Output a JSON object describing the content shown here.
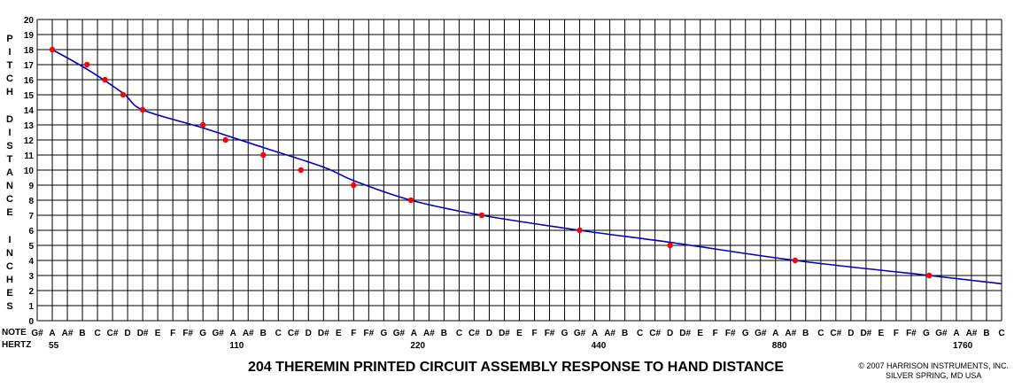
{
  "chart_data": {
    "type": "line",
    "title": "204 THEREMIN PRINTED CIRCUIT ASSEMBLY RESPONSE TO HAND DISTANCE",
    "ylabel_lines": [
      "P",
      "I",
      "T",
      "C",
      "H",
      "",
      "D",
      "I",
      "S",
      "T",
      "A",
      "N",
      "C",
      "E",
      "",
      "I",
      "N",
      "C",
      "H",
      "E",
      "S"
    ],
    "ylim": [
      0,
      20
    ],
    "y_ticks": [
      "0",
      "1",
      "2",
      "3",
      "4",
      "5",
      "6",
      "7",
      "8",
      "9",
      "10",
      "11",
      "12",
      "13",
      "14",
      "15",
      "16",
      "17",
      "18",
      "19",
      "20"
    ],
    "x_row_labels": {
      "note": "NOTE",
      "hertz": "HERTZ"
    },
    "notes": [
      "G#",
      "A",
      "A#",
      "B",
      "C",
      "C#",
      "D",
      "D#",
      "E",
      "F",
      "F#",
      "G",
      "G#",
      "A",
      "A#",
      "B",
      "C",
      "C#",
      "D",
      "D#",
      "E",
      "F",
      "F#",
      "G",
      "G#",
      "A",
      "A#",
      "B",
      "C",
      "C#",
      "D",
      "D#",
      "E",
      "F",
      "F#",
      "G",
      "G#",
      "A",
      "A#",
      "B",
      "C",
      "C#",
      "D",
      "D#",
      "E",
      "F",
      "F#",
      "G",
      "G#",
      "A",
      "A#",
      "B",
      "C",
      "C#",
      "D",
      "D#",
      "E",
      "F",
      "F#",
      "G",
      "G#",
      "A",
      "A#",
      "B",
      "C"
    ],
    "hertz_labels": [
      {
        "semitone": 1,
        "text": "55"
      },
      {
        "semitone": 13,
        "text": "110"
      },
      {
        "semitone": 25,
        "text": "220"
      },
      {
        "semitone": 37,
        "text": "440"
      },
      {
        "semitone": 49,
        "text": "880"
      },
      {
        "semitone": 61,
        "text": "1760"
      }
    ],
    "grid": true,
    "series": [
      {
        "kind": "measured",
        "color": "#ff0000",
        "points": [
          {
            "x": 1.0,
            "y": 18
          },
          {
            "x": 3.3,
            "y": 17
          },
          {
            "x": 4.5,
            "y": 16
          },
          {
            "x": 5.7,
            "y": 15
          },
          {
            "x": 7.0,
            "y": 14
          },
          {
            "x": 11.0,
            "y": 13
          },
          {
            "x": 12.5,
            "y": 12
          },
          {
            "x": 15.0,
            "y": 11
          },
          {
            "x": 17.5,
            "y": 10
          },
          {
            "x": 21.0,
            "y": 9
          },
          {
            "x": 24.8,
            "y": 8
          },
          {
            "x": 29.5,
            "y": 7
          },
          {
            "x": 36.0,
            "y": 6
          },
          {
            "x": 42.0,
            "y": 5
          },
          {
            "x": 50.3,
            "y": 4
          },
          {
            "x": 59.2,
            "y": 3
          }
        ]
      },
      {
        "kind": "fit",
        "color": "#0000cc",
        "points": [
          {
            "x": 1.0,
            "y": 18.0
          },
          {
            "x": 3.3,
            "y": 16.7
          },
          {
            "x": 5.7,
            "y": 15.1
          },
          {
            "x": 7.0,
            "y": 14.0
          },
          {
            "x": 11.0,
            "y": 12.8
          },
          {
            "x": 15.0,
            "y": 11.5
          },
          {
            "x": 19.0,
            "y": 10.2
          },
          {
            "x": 21.0,
            "y": 9.3
          },
          {
            "x": 24.8,
            "y": 8.0
          },
          {
            "x": 29.5,
            "y": 7.0
          },
          {
            "x": 36.0,
            "y": 6.0
          },
          {
            "x": 42.0,
            "y": 5.2
          },
          {
            "x": 50.3,
            "y": 4.0
          },
          {
            "x": 59.2,
            "y": 3.0
          },
          {
            "x": 64.0,
            "y": 2.45
          }
        ]
      }
    ]
  },
  "credit": {
    "line1": "© 2007 HARRISON INSTRUMENTS, INC.",
    "line2": "SILVER SPRING, MD USA"
  }
}
